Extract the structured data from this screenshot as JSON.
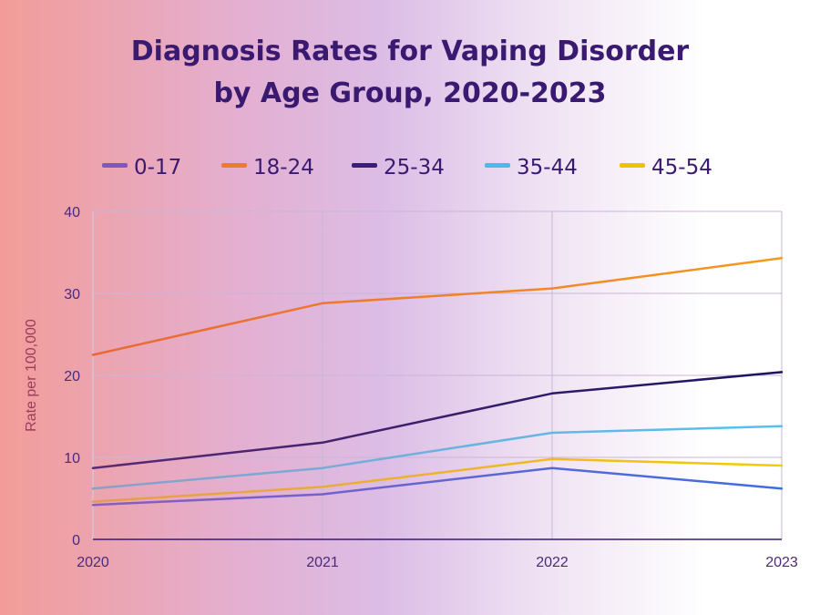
{
  "chart_data": {
    "type": "line",
    "title_lines": [
      "Diagnosis Rates for Vaping Disorder",
      "by Age Group, 2020-2023"
    ],
    "xlabel": "",
    "ylabel": "Rate per 100,000",
    "x": [
      "2020",
      "2021",
      "2022",
      "2023"
    ],
    "ylim": [
      0,
      40
    ],
    "yticks": [
      0,
      10,
      20,
      30,
      40
    ],
    "grid": true,
    "legend_position": "top",
    "series": [
      {
        "name": "0-17",
        "values": [
          4.2,
          5.5,
          8.7,
          6.2
        ],
        "color": "#7e57c2",
        "gradient": [
          "#8c5bbf",
          "#3c6fe0"
        ]
      },
      {
        "name": "18-24",
        "values": [
          22.5,
          28.8,
          30.6,
          34.3
        ],
        "color": "#f07a2a",
        "gradient": [
          "#e8673a",
          "#f59a1b"
        ]
      },
      {
        "name": "25-34",
        "values": [
          8.7,
          11.8,
          17.8,
          20.4
        ],
        "color": "#3b1c78",
        "gradient": [
          "#5a2a75",
          "#1a1460"
        ]
      },
      {
        "name": "35-44",
        "values": [
          6.2,
          8.7,
          13.0,
          13.8
        ],
        "color": "#4db8ea",
        "gradient": [
          "#8a9fc9",
          "#52c3f0"
        ]
      },
      {
        "name": "45-54",
        "values": [
          4.6,
          6.4,
          9.8,
          9.0
        ],
        "color": "#f2c200",
        "gradient": [
          "#e49b55",
          "#f5cc00"
        ]
      }
    ],
    "title_color": "#3a1970",
    "axis_color": "#3a1970",
    "tick_color": "#4a2a7a",
    "ylabel_color": "#9c3a5e"
  }
}
